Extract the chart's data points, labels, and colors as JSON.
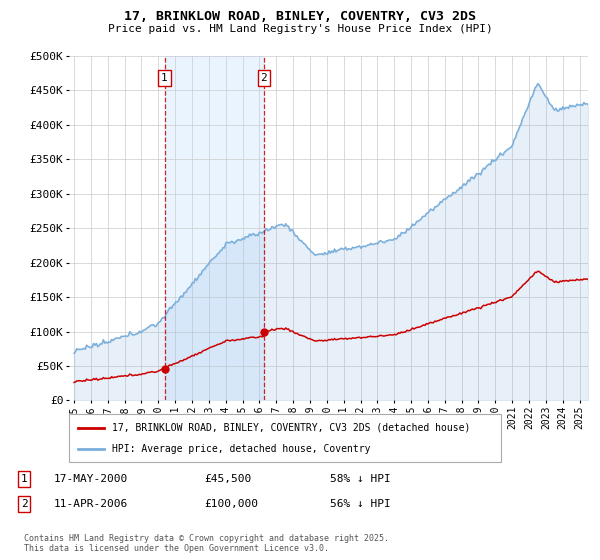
{
  "title": "17, BRINKLOW ROAD, BINLEY, COVENTRY, CV3 2DS",
  "subtitle": "Price paid vs. HM Land Registry's House Price Index (HPI)",
  "ylim": [
    0,
    500000
  ],
  "yticks": [
    0,
    50000,
    100000,
    150000,
    200000,
    250000,
    300000,
    350000,
    400000,
    450000,
    500000
  ],
  "ytick_labels": [
    "£0",
    "£50K",
    "£100K",
    "£150K",
    "£200K",
    "£250K",
    "£300K",
    "£350K",
    "£400K",
    "£450K",
    "£500K"
  ],
  "xlim_start": 1994.7,
  "xlim_end": 2025.5,
  "background_color": "#ffffff",
  "grid_color": "#cccccc",
  "hpi_color": "#7aaedb",
  "property_color": "#cc0000",
  "sale1_date": 2000.37,
  "sale1_price": 45500,
  "sale1_label": "1",
  "sale2_date": 2006.27,
  "sale2_price": 100000,
  "sale2_label": "2",
  "legend_line1": "17, BRINKLOW ROAD, BINLEY, COVENTRY, CV3 2DS (detached house)",
  "legend_line2": "HPI: Average price, detached house, Coventry",
  "annot1_num": "1",
  "annot1_date": "17-MAY-2000",
  "annot1_price": "£45,500",
  "annot1_hpi": "58% ↓ HPI",
  "annot2_num": "2",
  "annot2_date": "11-APR-2006",
  "annot2_price": "£100,000",
  "annot2_hpi": "56% ↓ HPI",
  "copyright": "Contains HM Land Registry data © Crown copyright and database right 2025.\nThis data is licensed under the Open Government Licence v3.0.",
  "shade_color": "#ddeeff"
}
